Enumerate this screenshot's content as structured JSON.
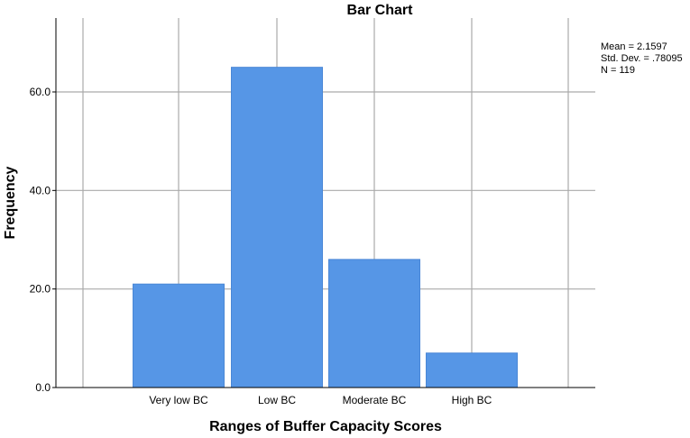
{
  "chart_data": {
    "type": "bar",
    "title": "Bar Chart",
    "xlabel": "Ranges of Buffer Capacity Scores",
    "ylabel": "Frequency",
    "categories": [
      "Very low BC",
      "Low BC",
      "Moderate BC",
      "High BC"
    ],
    "values": [
      21,
      65,
      26,
      7
    ],
    "ylim": [
      0,
      75
    ],
    "yticks": [
      0,
      20,
      40,
      60
    ],
    "ytick_labels": [
      "0.0",
      "20.0",
      "40.0",
      "60.0"
    ],
    "grid": true,
    "bar_color": "#5696e6",
    "bar_edge_color": "#4a87d6",
    "grid_color": "#aaaaaa",
    "stats": {
      "mean": "Mean = 2.1597",
      "std_dev": "Std. Dev. = .78095",
      "n": "N = 119"
    }
  }
}
